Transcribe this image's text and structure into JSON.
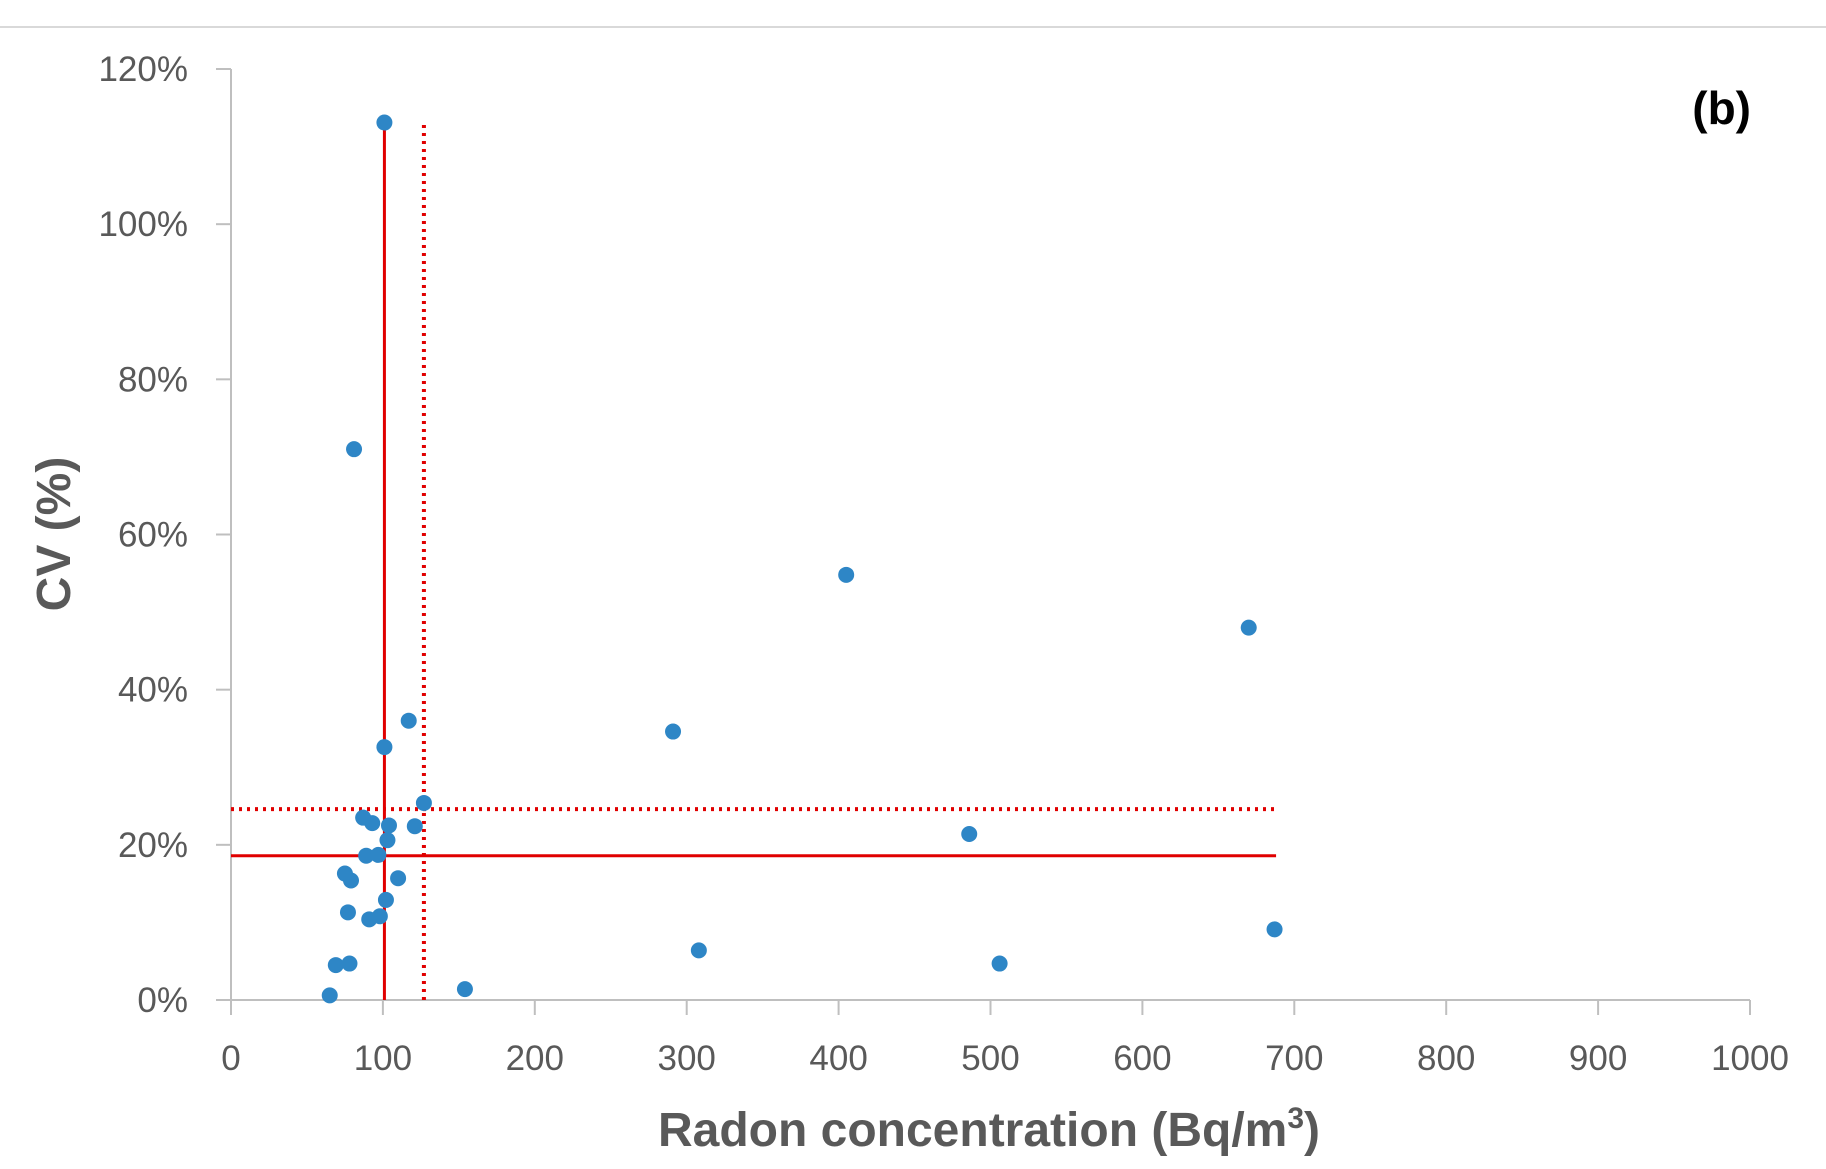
{
  "chart_data": {
    "type": "scatter",
    "panel_label": "(b)",
    "xlabel": "Radon concentration (Bq/m",
    "xlabel_superscript": "3",
    "xlabel_suffix": ")",
    "ylabel": "CV (%)",
    "xlim": [
      0,
      1000
    ],
    "ylim": [
      0,
      120
    ],
    "x_ticks": [
      0,
      100,
      200,
      300,
      400,
      500,
      600,
      700,
      800,
      900,
      1000
    ],
    "x_tick_labels": [
      "0",
      "100",
      "200",
      "300",
      "400",
      "500",
      "600",
      "700",
      "800",
      "900",
      "1000"
    ],
    "y_ticks": [
      0,
      20,
      40,
      60,
      80,
      100,
      120
    ],
    "y_tick_labels": [
      "0%",
      "20%",
      "40%",
      "60%",
      "80%",
      "100%",
      "120%"
    ],
    "grid": false,
    "legend": "none",
    "colors": {
      "points": "#2e86c6",
      "reference_lines": "#e00000",
      "axis": "#bfbfbf"
    },
    "points": [
      {
        "x": 101,
        "y": 113.1
      },
      {
        "x": 81,
        "y": 71.0
      },
      {
        "x": 405,
        "y": 54.8
      },
      {
        "x": 670,
        "y": 48.0
      },
      {
        "x": 117,
        "y": 36.0
      },
      {
        "x": 291,
        "y": 34.6
      },
      {
        "x": 101,
        "y": 32.6
      },
      {
        "x": 127,
        "y": 25.4
      },
      {
        "x": 87,
        "y": 23.5
      },
      {
        "x": 93,
        "y": 22.8
      },
      {
        "x": 104,
        "y": 22.5
      },
      {
        "x": 121,
        "y": 22.4
      },
      {
        "x": 486,
        "y": 21.4
      },
      {
        "x": 103,
        "y": 20.6
      },
      {
        "x": 89,
        "y": 18.6
      },
      {
        "x": 97,
        "y": 18.7
      },
      {
        "x": 75,
        "y": 16.3
      },
      {
        "x": 79,
        "y": 15.4
      },
      {
        "x": 110,
        "y": 15.7
      },
      {
        "x": 102,
        "y": 12.9
      },
      {
        "x": 77,
        "y": 11.3
      },
      {
        "x": 98,
        "y": 10.8
      },
      {
        "x": 91,
        "y": 10.4
      },
      {
        "x": 687,
        "y": 9.1
      },
      {
        "x": 308,
        "y": 6.4
      },
      {
        "x": 69,
        "y": 4.5
      },
      {
        "x": 78,
        "y": 4.7
      },
      {
        "x": 506,
        "y": 4.7
      },
      {
        "x": 154,
        "y": 1.4
      },
      {
        "x": 65,
        "y": 0.6
      }
    ],
    "reference_lines": [
      {
        "orientation": "vertical",
        "value": 101,
        "style": "solid",
        "from": 0,
        "to": 113
      },
      {
        "orientation": "vertical",
        "value": 127,
        "style": "dotted",
        "from": 0,
        "to": 113
      },
      {
        "orientation": "horizontal",
        "value": 18.6,
        "style": "solid",
        "from": 0,
        "to": 688
      },
      {
        "orientation": "horizontal",
        "value": 24.6,
        "style": "dotted",
        "from": 0,
        "to": 688
      }
    ]
  }
}
